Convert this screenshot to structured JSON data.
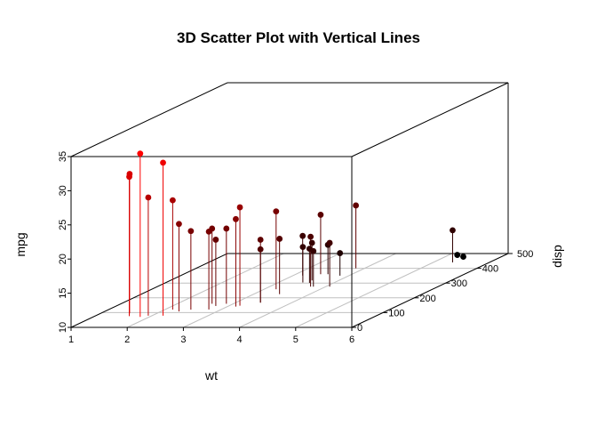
{
  "chart_data": {
    "type": "scatter3d",
    "title": "3D Scatter Plot with Vertical Lines",
    "xlabel": "wt",
    "ylabel": "disp",
    "zlabel": "mpg",
    "xlim": [
      1,
      6
    ],
    "ylim": [
      0,
      500
    ],
    "zlim": [
      10,
      35
    ],
    "x_ticks": [
      "1",
      "2",
      "3",
      "4",
      "5",
      "6"
    ],
    "y_ticks": [
      "0",
      "100",
      "200",
      "300",
      "400",
      "500"
    ],
    "z_ticks": [
      "10",
      "15",
      "20",
      "25",
      "30",
      "35"
    ],
    "vertical_lines": true,
    "color_by": "mpg",
    "color_low": "#000000",
    "color_high": "#ff0000",
    "points": [
      {
        "wt": 2.62,
        "disp": 160.0,
        "mpg": 21.0
      },
      {
        "wt": 2.875,
        "disp": 160.0,
        "mpg": 21.0
      },
      {
        "wt": 2.32,
        "disp": 108.0,
        "mpg": 22.8
      },
      {
        "wt": 3.215,
        "disp": 258.0,
        "mpg": 21.4
      },
      {
        "wt": 3.44,
        "disp": 360.0,
        "mpg": 18.7
      },
      {
        "wt": 3.46,
        "disp": 225.0,
        "mpg": 18.1
      },
      {
        "wt": 3.57,
        "disp": 360.0,
        "mpg": 14.3
      },
      {
        "wt": 3.19,
        "disp": 146.7,
        "mpg": 24.4
      },
      {
        "wt": 3.15,
        "disp": 140.8,
        "mpg": 22.8
      },
      {
        "wt": 3.44,
        "disp": 167.6,
        "mpg": 19.2
      },
      {
        "wt": 3.44,
        "disp": 167.6,
        "mpg": 17.8
      },
      {
        "wt": 4.07,
        "disp": 275.8,
        "mpg": 16.4
      },
      {
        "wt": 3.73,
        "disp": 275.8,
        "mpg": 17.3
      },
      {
        "wt": 3.78,
        "disp": 275.8,
        "mpg": 15.2
      },
      {
        "wt": 5.25,
        "disp": 472.0,
        "mpg": 10.4
      },
      {
        "wt": 5.424,
        "disp": 460.0,
        "mpg": 10.4
      },
      {
        "wt": 5.345,
        "disp": 440.0,
        "mpg": 14.7
      },
      {
        "wt": 2.2,
        "disp": 78.7,
        "mpg": 32.4
      },
      {
        "wt": 1.615,
        "disp": 75.7,
        "mpg": 30.4
      },
      {
        "wt": 1.835,
        "disp": 71.1,
        "mpg": 33.9
      },
      {
        "wt": 2.465,
        "disp": 120.1,
        "mpg": 21.5
      },
      {
        "wt": 3.52,
        "disp": 318.0,
        "mpg": 15.5
      },
      {
        "wt": 3.435,
        "disp": 304.0,
        "mpg": 15.2
      },
      {
        "wt": 3.84,
        "disp": 350.0,
        "mpg": 13.3
      },
      {
        "wt": 3.845,
        "disp": 400.0,
        "mpg": 19.2
      },
      {
        "wt": 1.935,
        "disp": 79.0,
        "mpg": 27.3
      },
      {
        "wt": 2.14,
        "disp": 120.3,
        "mpg": 26.0
      },
      {
        "wt": 1.513,
        "disp": 95.1,
        "mpg": 30.4
      },
      {
        "wt": 3.17,
        "disp": 351.0,
        "mpg": 15.8
      },
      {
        "wt": 2.77,
        "disp": 145.0,
        "mpg": 19.7
      },
      {
        "wt": 3.57,
        "disp": 301.0,
        "mpg": 15.0
      },
      {
        "wt": 2.78,
        "disp": 121.0,
        "mpg": 21.4
      }
    ]
  }
}
